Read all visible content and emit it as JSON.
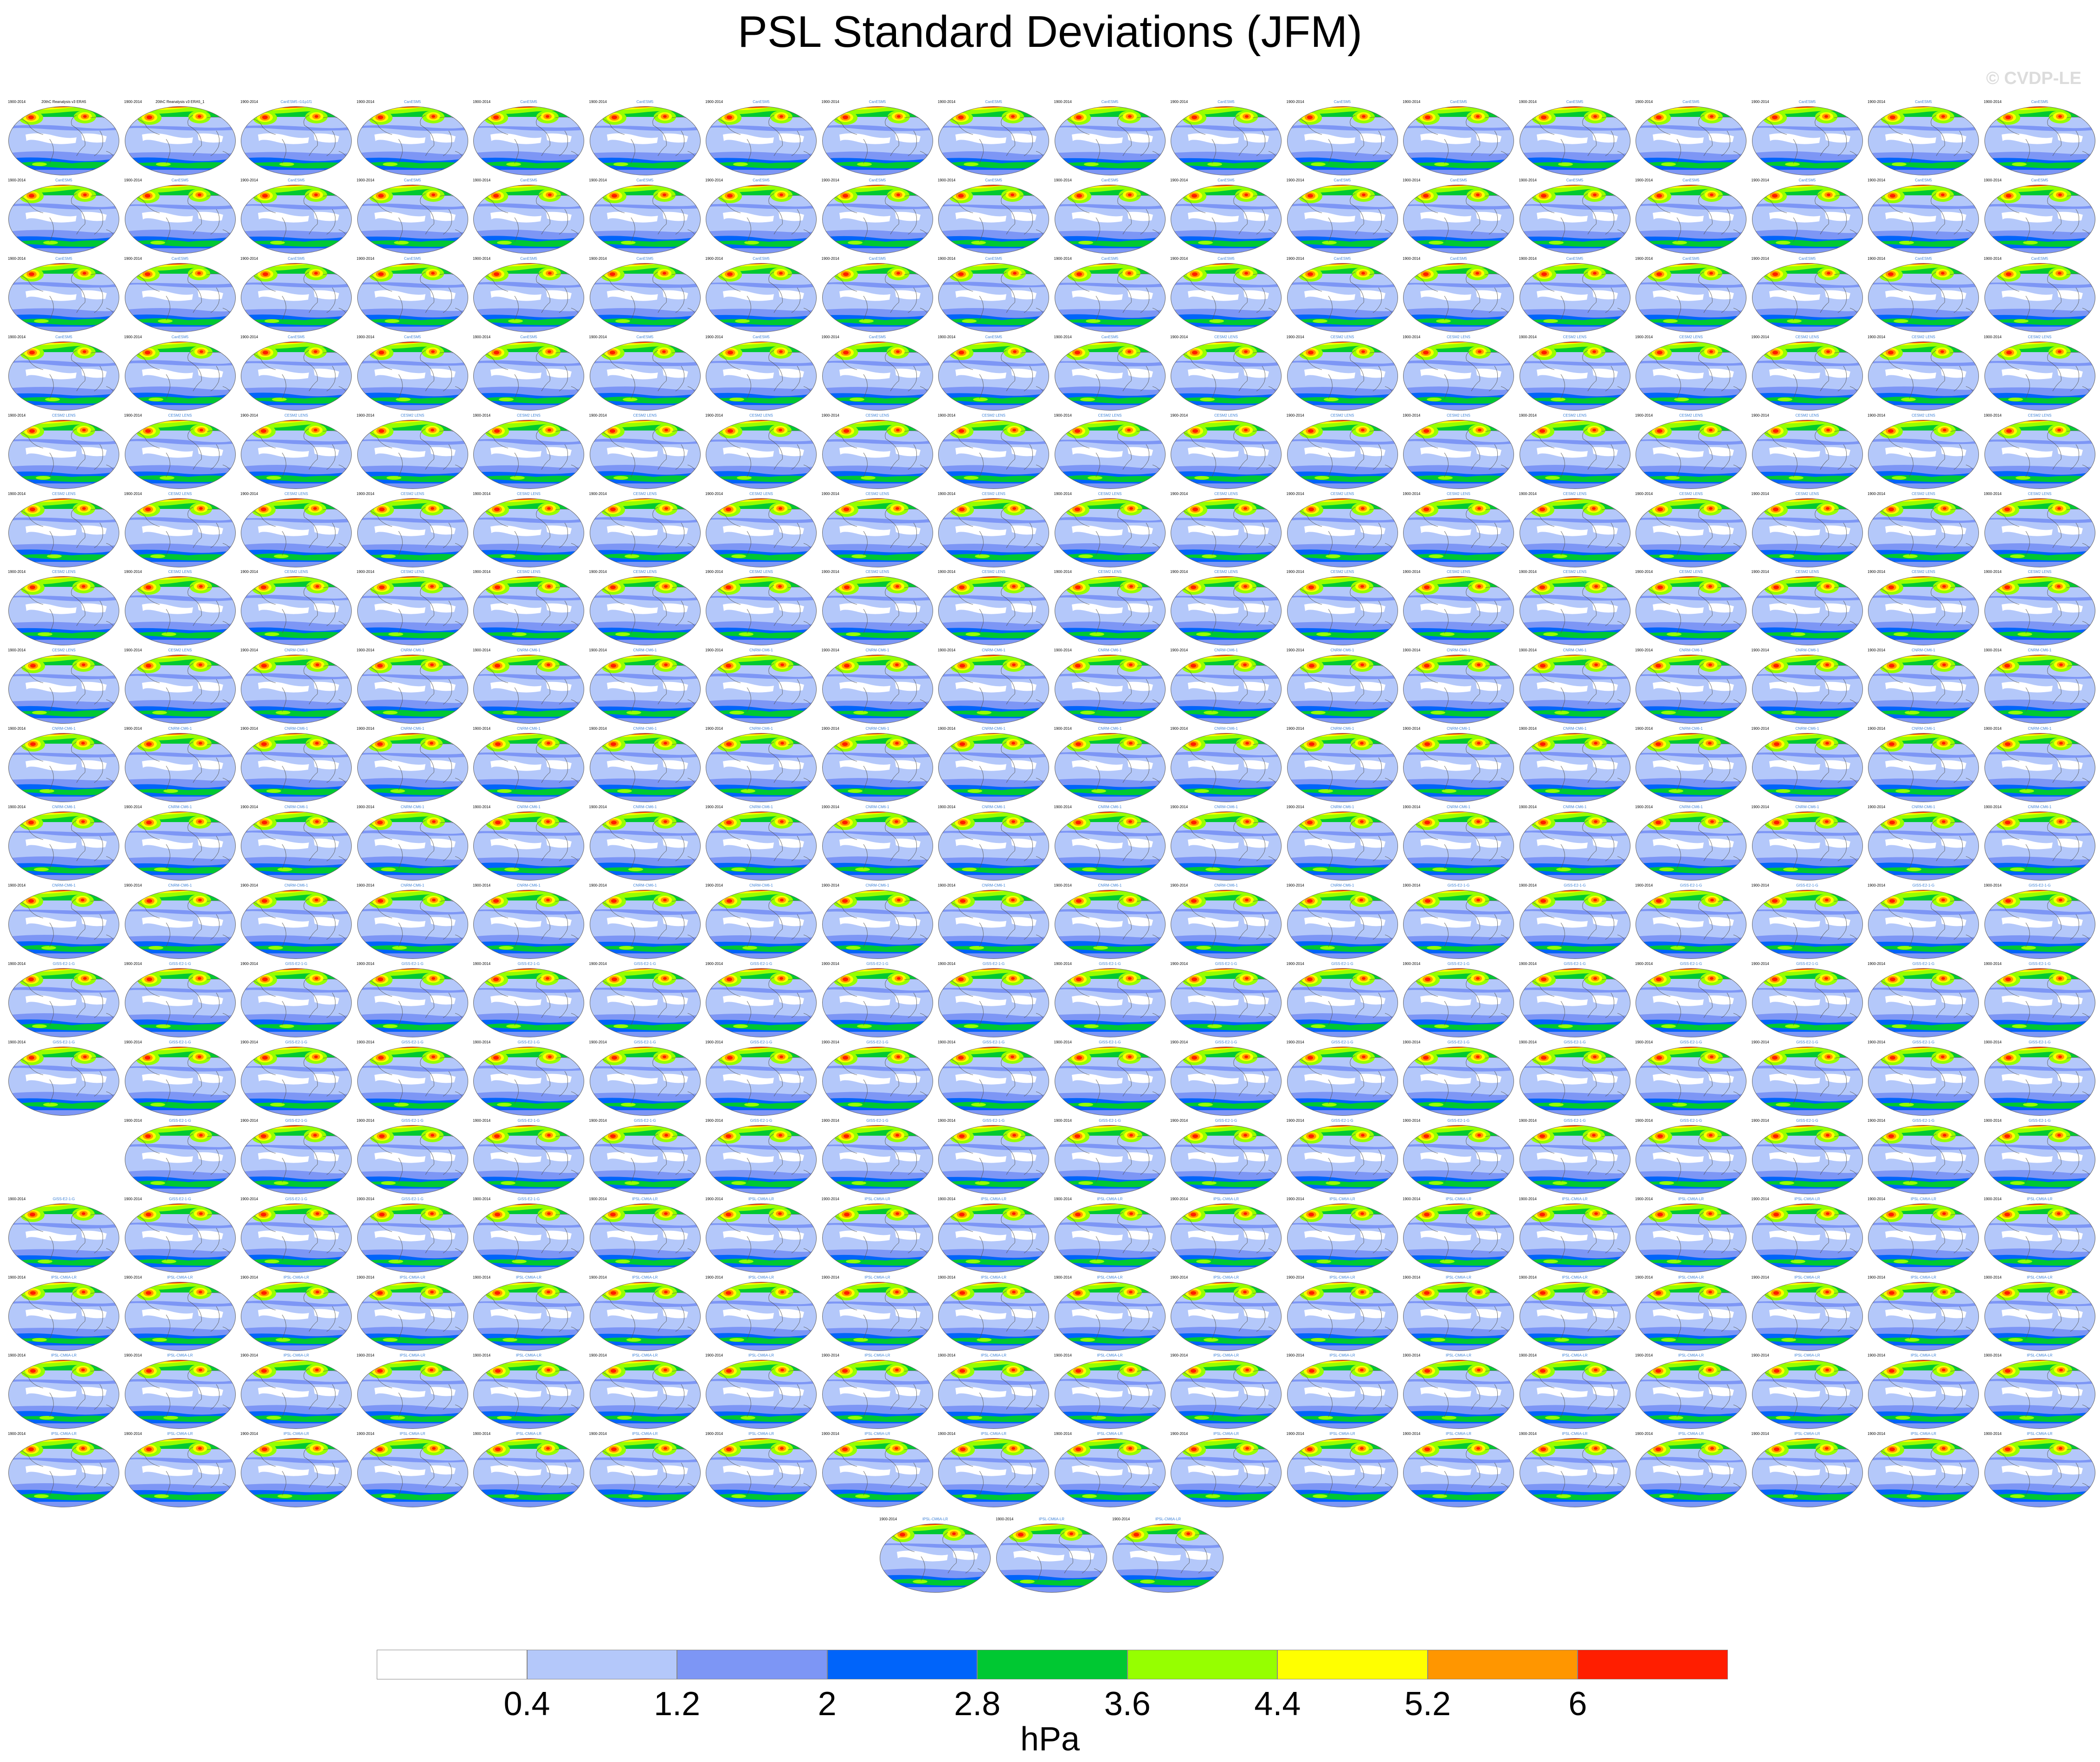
{
  "title": "PSL Standard Deviations (JFM)",
  "credit": "© CVDP-LE",
  "panels": {
    "period": "1900-2014",
    "row1_labels": [
      "20thC Reanalysis v3 ERA5",
      "20thC Reanalysis v3 ERA5_1",
      "CanESM5 r1i1p1f1"
    ],
    "model_labels": [
      "CanESM5",
      "CESM2 LENS",
      "CNRM-CM6-1",
      "GISS-E2-1-G",
      "IPSL-CM6A-LR"
    ],
    "panel_count": 312,
    "grid_rows": 18,
    "grid_cols": 18
  },
  "colorbar": {
    "colors": [
      "#ffffff",
      "#b4c8fa",
      "#7d96f5",
      "#0064fa",
      "#00c832",
      "#96ff00",
      "#ffff00",
      "#ff9600",
      "#ff1e00"
    ],
    "tick_labels": [
      "0.4",
      "1.2",
      "2",
      "2.8",
      "3.6",
      "4.4",
      "5.2",
      "6"
    ],
    "units": "hPa"
  },
  "colors": {
    "land_outline": "#555555",
    "title_text": "#000000",
    "panel_label": "#3a7fd5"
  }
}
